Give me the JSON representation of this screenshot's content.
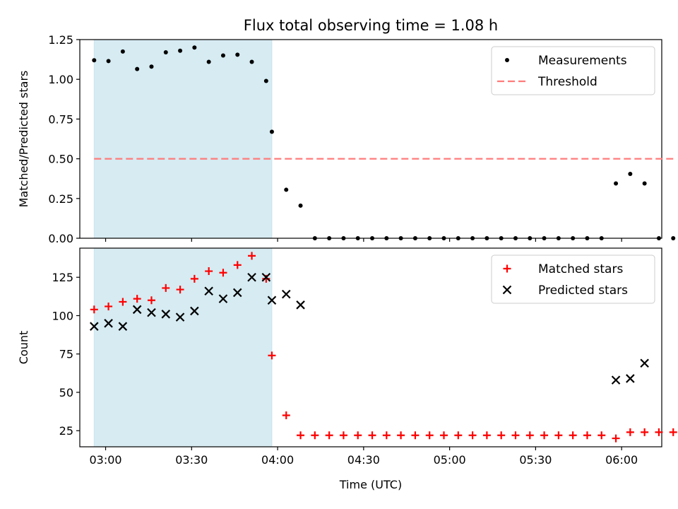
{
  "title": "Flux total observing time = 1.08 h",
  "chart_data": [
    {
      "type": "scatter",
      "panel": "top",
      "title": "Flux total observing time = 1.08 h",
      "ylabel": "Matched/Predicted stars",
      "xlabel": "",
      "xlim": [
        "02:51",
        "06:14"
      ],
      "ylim": [
        0,
        1.25
      ],
      "y_ticks": [
        0.0,
        0.25,
        0.5,
        0.75,
        1.0,
        1.25
      ],
      "y_tick_labels": [
        "0.00",
        "0.25",
        "0.50",
        "0.75",
        "1.00",
        "1.25"
      ],
      "x_tick_labels": [],
      "shaded_span": [
        "02:56",
        "03:58"
      ],
      "legend_position": "top-right",
      "series": [
        {
          "name": "Measurements",
          "marker": "dot",
          "color": "#000000",
          "x": [
            "02:56",
            "03:01",
            "03:06",
            "03:11",
            "03:16",
            "03:21",
            "03:26",
            "03:31",
            "03:36",
            "03:41",
            "03:46",
            "03:51",
            "03:56",
            "03:58",
            "04:03",
            "04:08",
            "04:13",
            "04:18",
            "04:23",
            "04:28",
            "04:33",
            "04:38",
            "04:43",
            "04:48",
            "04:53",
            "04:58",
            "05:03",
            "05:08",
            "05:13",
            "05:18",
            "05:23",
            "05:28",
            "05:33",
            "05:38",
            "05:43",
            "05:48",
            "05:53",
            "05:58",
            "06:03",
            "06:08",
            "06:13",
            "06:18"
          ],
          "y": [
            1.12,
            1.115,
            1.175,
            1.065,
            1.08,
            1.17,
            1.18,
            1.2,
            1.11,
            1.15,
            1.155,
            1.11,
            0.99,
            0.67,
            0.305,
            0.205,
            0,
            0,
            0,
            0,
            0,
            0,
            0,
            0,
            0,
            0,
            0,
            0,
            0,
            0,
            0,
            0,
            0,
            0,
            0,
            0,
            0,
            0.345,
            0.405,
            0.345,
            0,
            0
          ]
        },
        {
          "name": "Threshold",
          "marker": "dashed-line",
          "color": "#ff7b7b",
          "x": [
            "02:56",
            "06:18"
          ],
          "y": [
            0.5,
            0.5
          ]
        }
      ]
    },
    {
      "type": "scatter",
      "panel": "bottom",
      "title": "",
      "ylabel": "Count",
      "xlabel": "Time (UTC)",
      "xlim": [
        "02:51",
        "06:14"
      ],
      "ylim": [
        14.5,
        144
      ],
      "y_ticks": [
        25,
        50,
        75,
        100,
        125
      ],
      "y_tick_labels": [
        "25",
        "50",
        "75",
        "100",
        "125"
      ],
      "x_ticks": [
        "03:00",
        "03:30",
        "04:00",
        "04:30",
        "05:00",
        "05:30",
        "06:00"
      ],
      "x_tick_labels": [
        "03:00",
        "03:30",
        "04:00",
        "04:30",
        "05:00",
        "05:30",
        "06:00"
      ],
      "shaded_span": [
        "02:56",
        "03:58"
      ],
      "legend_position": "top-right",
      "series": [
        {
          "name": "Matched stars",
          "marker": "plus",
          "color": "#ff0000",
          "x": [
            "02:56",
            "03:01",
            "03:06",
            "03:11",
            "03:16",
            "03:21",
            "03:26",
            "03:31",
            "03:36",
            "03:41",
            "03:46",
            "03:51",
            "03:56",
            "03:58",
            "04:03",
            "04:08",
            "04:13",
            "04:18",
            "04:23",
            "04:28",
            "04:33",
            "04:38",
            "04:43",
            "04:48",
            "04:53",
            "04:58",
            "05:03",
            "05:08",
            "05:13",
            "05:18",
            "05:23",
            "05:28",
            "05:33",
            "05:38",
            "05:43",
            "05:48",
            "05:53",
            "05:58",
            "06:03",
            "06:08",
            "06:13",
            "06:18"
          ],
          "y": [
            104,
            106,
            109,
            111,
            110,
            118,
            117,
            124,
            129,
            128,
            133,
            139,
            124,
            74,
            35,
            22,
            22,
            22,
            22,
            22,
            22,
            22,
            22,
            22,
            22,
            22,
            22,
            22,
            22,
            22,
            22,
            22,
            22,
            22,
            22,
            22,
            22,
            20,
            24,
            24,
            24,
            24
          ]
        },
        {
          "name": "Predicted stars",
          "marker": "x",
          "color": "#000000",
          "x": [
            "02:56",
            "03:01",
            "03:06",
            "03:11",
            "03:16",
            "03:21",
            "03:26",
            "03:31",
            "03:36",
            "03:41",
            "03:46",
            "03:51",
            "03:56",
            "03:58",
            "04:03",
            "04:08",
            "05:58",
            "06:03",
            "06:08"
          ],
          "y": [
            93,
            95,
            93,
            104,
            102,
            101,
            99,
            103,
            116,
            111,
            115,
            125,
            125,
            110,
            114,
            107,
            58,
            59,
            69
          ]
        }
      ]
    }
  ]
}
